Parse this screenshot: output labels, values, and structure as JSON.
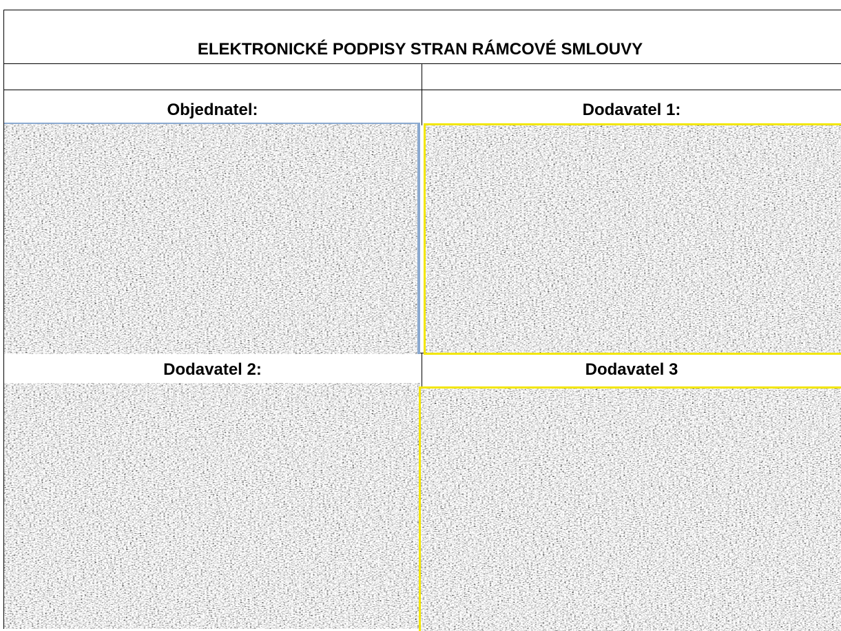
{
  "header": {
    "title": "ELEKTRONICKÉ PODPISY STRAN RÁMCOVÉ SMLOUVY"
  },
  "signatures": [
    {
      "label": "Objednatel:"
    },
    {
      "label": "Dodavatel 1:"
    },
    {
      "label": "Dodavatel 2:"
    },
    {
      "label": "Dodavatel 3"
    }
  ]
}
